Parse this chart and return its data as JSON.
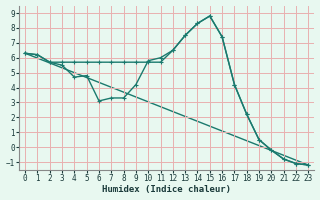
{
  "title": "",
  "xlabel": "Humidex (Indice chaleur)",
  "bg_color": "#e8f8f0",
  "grid_color": "#e8b0b0",
  "line_color": "#1a7a6e",
  "xlim": [
    -0.5,
    23.5
  ],
  "ylim": [
    -1.5,
    9.5
  ],
  "xticks": [
    0,
    1,
    2,
    3,
    4,
    5,
    6,
    7,
    8,
    9,
    10,
    11,
    12,
    13,
    14,
    15,
    16,
    17,
    18,
    19,
    20,
    21,
    22,
    23
  ],
  "yticks": [
    -1,
    0,
    1,
    2,
    3,
    4,
    5,
    6,
    7,
    8,
    9
  ],
  "line1_x": [
    0,
    1,
    2,
    3,
    4,
    5,
    6,
    7,
    8,
    9,
    10,
    11,
    12,
    13,
    14,
    15,
    16,
    17,
    18,
    19,
    20,
    21,
    22,
    23
  ],
  "line1_y": [
    6.3,
    6.2,
    5.7,
    5.5,
    4.7,
    4.8,
    3.1,
    3.3,
    3.3,
    4.2,
    5.8,
    6.0,
    6.5,
    7.5,
    8.3,
    8.8,
    7.4,
    4.2,
    2.2,
    0.5,
    -0.2,
    -0.8,
    -1.1,
    -1.2
  ],
  "line2_x": [
    0,
    1,
    2,
    3,
    4,
    5,
    6,
    7,
    8,
    9,
    10,
    11,
    12,
    13,
    14,
    15,
    16,
    17,
    18,
    19,
    20,
    21,
    22,
    23
  ],
  "line2_y": [
    6.3,
    6.2,
    5.7,
    5.7,
    5.7,
    5.7,
    5.7,
    5.7,
    5.7,
    5.7,
    5.7,
    5.7,
    6.5,
    7.5,
    8.3,
    8.8,
    7.4,
    4.2,
    2.2,
    0.5,
    -0.2,
    -0.8,
    -1.1,
    -1.2
  ],
  "line3_x": [
    0,
    23
  ],
  "line3_y": [
    6.3,
    -1.2
  ]
}
